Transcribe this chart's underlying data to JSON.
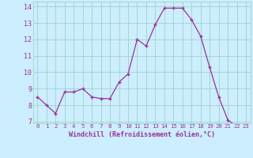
{
  "x": [
    0,
    1,
    2,
    3,
    4,
    5,
    6,
    7,
    8,
    9,
    10,
    11,
    12,
    13,
    14,
    15,
    16,
    17,
    18,
    19,
    20,
    21,
    22,
    23
  ],
  "y": [
    8.5,
    8.0,
    7.5,
    8.8,
    8.8,
    9.0,
    8.5,
    8.4,
    8.4,
    9.4,
    9.9,
    12.0,
    11.6,
    12.9,
    13.9,
    13.9,
    13.9,
    13.2,
    12.2,
    10.3,
    8.5,
    7.1,
    6.7,
    6.7
  ],
  "xlabel": "Windchill (Refroidissement éolien,°C)",
  "line_color": "#993399",
  "marker_color": "#993399",
  "bg_color": "#cceeff",
  "grid_color": "#99ccbb",
  "tick_label_color": "#993399",
  "axis_label_color": "#993399",
  "xlim": [
    -0.5,
    23.5
  ],
  "ylim": [
    6.9,
    14.3
  ],
  "yticks": [
    7,
    8,
    9,
    10,
    11,
    12,
    13,
    14
  ],
  "xticks": [
    0,
    1,
    2,
    3,
    4,
    5,
    6,
    7,
    8,
    9,
    10,
    11,
    12,
    13,
    14,
    15,
    16,
    17,
    18,
    19,
    20,
    21,
    22,
    23
  ],
  "xlabel_fontsize": 6.0,
  "xtick_fontsize": 5.2,
  "ytick_fontsize": 6.0
}
